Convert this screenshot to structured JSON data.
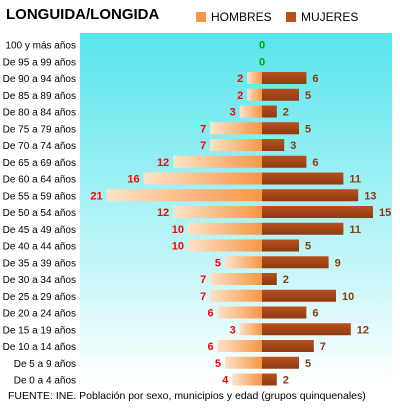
{
  "chart_data": {
    "type": "bar",
    "title": "LONGUIDA/LONGIDA",
    "orientation": "horizontal-pyramid",
    "categories": [
      "100 y más años",
      "De 95 a 99 años",
      "De 90 a 94 años",
      "De 85 a 89 años",
      "De 80 a 84 años",
      "De 75 a 79 años",
      "De 70 a 74 años",
      "De 65 a 69 años",
      "De 60 a 64 años",
      "De 55 a 59 años",
      "De 50 a 54 años",
      "De 45 a 49 años",
      "De 40 a 44 años",
      "De 35 a 39 años",
      "De 30 a 34 años",
      "De 25 a 29 años",
      "De 20 a 24 años",
      "De 15 a 19 años",
      "De 10 a 14 años",
      "De 5 a 9 años",
      "De 0 a 4 años"
    ],
    "series": [
      {
        "name": "HOMBRES",
        "color": "#f79646",
        "label_color": "#ff0000",
        "values": [
          0,
          0,
          2,
          2,
          3,
          7,
          7,
          12,
          16,
          21,
          12,
          10,
          10,
          5,
          7,
          7,
          6,
          3,
          6,
          5,
          4
        ]
      },
      {
        "name": "MUJERES",
        "color": "#b8501d",
        "label_color": "#8b3a0f",
        "values": [
          0,
          0,
          6,
          5,
          2,
          5,
          3,
          6,
          11,
          13,
          15,
          11,
          5,
          9,
          2,
          10,
          6,
          12,
          7,
          5,
          2
        ]
      }
    ],
    "total_labels": [
      0,
      0
    ],
    "total_label_color": "#00aa00",
    "plot_background": [
      "#56e5ec",
      "#ffffff"
    ],
    "legend_position": "top"
  },
  "source": "FUENTE: INE.  Población por sexo, municipios y edad (grupos quinquenales)"
}
